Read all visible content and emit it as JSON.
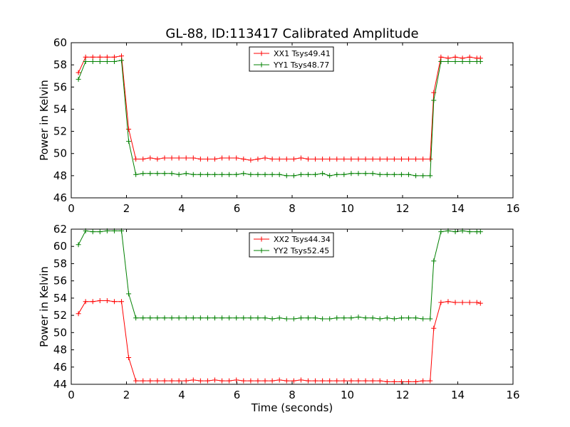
{
  "figure": {
    "title": "GL-88, ID:113417 Calibrated Amplitude"
  },
  "chart_data": [
    {
      "type": "line",
      "title": "GL-88, ID:113417 Calibrated Amplitude",
      "xlabel": "",
      "ylabel": "Power in Kelvin",
      "xlim": [
        0,
        16
      ],
      "ylim": [
        46,
        60
      ],
      "xticks": [
        0,
        2,
        4,
        6,
        8,
        10,
        12,
        14,
        16
      ],
      "yticks": [
        46,
        48,
        50,
        52,
        54,
        56,
        58,
        60
      ],
      "grid": false,
      "legend_position": "top-center",
      "x": [
        0.26,
        0.52,
        0.78,
        1.04,
        1.3,
        1.56,
        1.82,
        2.08,
        2.34,
        2.6,
        2.86,
        3.12,
        3.38,
        3.64,
        3.9,
        4.16,
        4.42,
        4.68,
        4.94,
        5.2,
        5.46,
        5.72,
        5.98,
        6.24,
        6.5,
        6.76,
        7.02,
        7.28,
        7.54,
        7.8,
        8.06,
        8.32,
        8.58,
        8.84,
        9.1,
        9.36,
        9.62,
        9.88,
        10.14,
        10.4,
        10.66,
        10.92,
        11.18,
        11.44,
        11.7,
        11.96,
        12.22,
        12.48,
        12.74,
        13.0,
        13.13,
        13.39,
        13.65,
        13.91,
        14.17,
        14.43,
        14.69,
        14.82
      ],
      "series": [
        {
          "name": "XX1 Tsys49.41",
          "color": "#ff0000",
          "values": [
            57.3,
            58.7,
            58.7,
            58.7,
            58.7,
            58.7,
            58.8,
            52.2,
            49.5,
            49.5,
            49.6,
            49.5,
            49.6,
            49.6,
            49.6,
            49.6,
            49.6,
            49.5,
            49.5,
            49.5,
            49.6,
            49.6,
            49.6,
            49.5,
            49.4,
            49.5,
            49.6,
            49.5,
            49.5,
            49.5,
            49.5,
            49.6,
            49.5,
            49.5,
            49.5,
            49.5,
            49.5,
            49.5,
            49.5,
            49.5,
            49.5,
            49.5,
            49.5,
            49.5,
            49.5,
            49.5,
            49.5,
            49.5,
            49.5,
            49.5,
            55.5,
            58.7,
            58.6,
            58.7,
            58.6,
            58.7,
            58.6,
            58.6
          ]
        },
        {
          "name": "YY1 Tsys48.77",
          "color": "#008000",
          "values": [
            56.7,
            58.3,
            58.3,
            58.3,
            58.3,
            58.3,
            58.4,
            51.1,
            48.1,
            48.2,
            48.2,
            48.2,
            48.2,
            48.2,
            48.1,
            48.2,
            48.1,
            48.1,
            48.1,
            48.1,
            48.1,
            48.1,
            48.1,
            48.2,
            48.1,
            48.1,
            48.1,
            48.1,
            48.1,
            48.0,
            48.0,
            48.1,
            48.1,
            48.1,
            48.2,
            48.0,
            48.1,
            48.1,
            48.2,
            48.2,
            48.2,
            48.2,
            48.1,
            48.1,
            48.1,
            48.1,
            48.1,
            48.0,
            48.0,
            48.0,
            54.8,
            58.3,
            58.3,
            58.3,
            58.3,
            58.3,
            58.3,
            58.3
          ]
        }
      ]
    },
    {
      "type": "line",
      "title": "",
      "xlabel": "Time (seconds)",
      "ylabel": "Power in Kelvin",
      "xlim": [
        0,
        16
      ],
      "ylim": [
        44,
        62
      ],
      "xticks": [
        0,
        2,
        4,
        6,
        8,
        10,
        12,
        14,
        16
      ],
      "yticks": [
        44,
        46,
        48,
        50,
        52,
        54,
        56,
        58,
        60,
        62
      ],
      "grid": false,
      "legend_position": "top-center",
      "x": [
        0.26,
        0.52,
        0.78,
        1.04,
        1.3,
        1.56,
        1.82,
        2.08,
        2.34,
        2.6,
        2.86,
        3.12,
        3.38,
        3.64,
        3.9,
        4.16,
        4.42,
        4.68,
        4.94,
        5.2,
        5.46,
        5.72,
        5.98,
        6.24,
        6.5,
        6.76,
        7.02,
        7.28,
        7.54,
        7.8,
        8.06,
        8.32,
        8.58,
        8.84,
        9.1,
        9.36,
        9.62,
        9.88,
        10.14,
        10.4,
        10.66,
        10.92,
        11.18,
        11.44,
        11.7,
        11.96,
        12.22,
        12.48,
        12.74,
        13.0,
        13.13,
        13.39,
        13.65,
        13.91,
        14.17,
        14.43,
        14.69,
        14.82
      ],
      "series": [
        {
          "name": "XX2 Tsys44.34",
          "color": "#ff0000",
          "values": [
            52.2,
            53.6,
            53.6,
            53.7,
            53.7,
            53.6,
            53.6,
            47.1,
            44.4,
            44.4,
            44.4,
            44.4,
            44.4,
            44.4,
            44.4,
            44.4,
            44.5,
            44.4,
            44.4,
            44.5,
            44.4,
            44.4,
            44.5,
            44.4,
            44.4,
            44.4,
            44.4,
            44.4,
            44.5,
            44.4,
            44.4,
            44.5,
            44.4,
            44.4,
            44.4,
            44.4,
            44.4,
            44.4,
            44.4,
            44.4,
            44.4,
            44.4,
            44.4,
            44.3,
            44.3,
            44.3,
            44.3,
            44.3,
            44.4,
            44.4,
            50.5,
            53.5,
            53.6,
            53.5,
            53.5,
            53.5,
            53.5,
            53.4
          ]
        },
        {
          "name": "YY2 Tsys52.45",
          "color": "#008000",
          "values": [
            60.2,
            61.8,
            61.7,
            61.7,
            61.8,
            61.8,
            61.8,
            54.5,
            51.7,
            51.7,
            51.7,
            51.7,
            51.7,
            51.7,
            51.7,
            51.7,
            51.7,
            51.7,
            51.7,
            51.7,
            51.7,
            51.7,
            51.7,
            51.7,
            51.7,
            51.7,
            51.7,
            51.6,
            51.7,
            51.6,
            51.6,
            51.7,
            51.7,
            51.7,
            51.6,
            51.6,
            51.7,
            51.7,
            51.7,
            51.8,
            51.7,
            51.7,
            51.6,
            51.7,
            51.6,
            51.7,
            51.7,
            51.7,
            51.6,
            51.6,
            58.3,
            61.7,
            61.8,
            61.7,
            61.8,
            61.7,
            61.7,
            61.7
          ]
        }
      ]
    }
  ]
}
